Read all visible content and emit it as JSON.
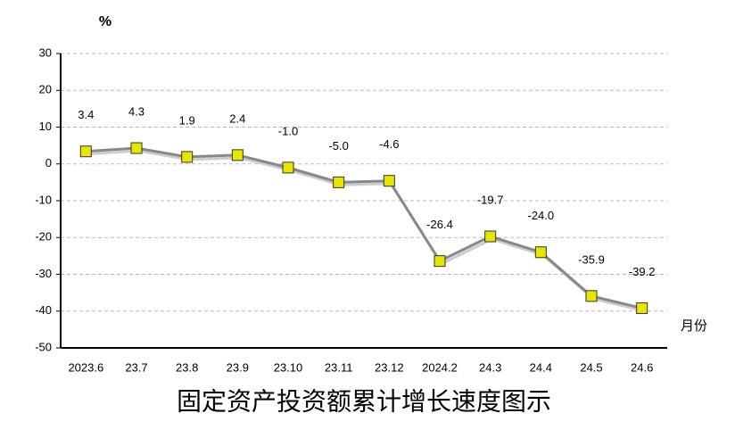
{
  "chart_data": {
    "type": "line",
    "title": "固定资产投资额累计增长速度图示",
    "y_unit": "%",
    "x_label": "月份",
    "categories": [
      "2023.6",
      "23.7",
      "23.8",
      "23.9",
      "23.10",
      "23.11",
      "23.12",
      "2024.2",
      "24.3",
      "24.4",
      "24.5",
      "24.6"
    ],
    "values": [
      3.4,
      4.3,
      1.9,
      2.4,
      -1.0,
      -5.0,
      -4.6,
      -26.4,
      -19.7,
      -24.0,
      -35.9,
      -39.2
    ],
    "value_labels": [
      "3.4",
      "4.3",
      "1.9",
      "2.4",
      "-1.0",
      "-5.0",
      "-4.6",
      "-26.4",
      "-19.7",
      "-24.0",
      "-35.9",
      "-39.2"
    ],
    "line_color": "#888888",
    "marker_color": "#e6e600",
    "ylim": [
      -50,
      30
    ],
    "yticks": [
      -50,
      -40,
      -30,
      -20,
      -10,
      0,
      10,
      20,
      30
    ],
    "grid": true
  }
}
